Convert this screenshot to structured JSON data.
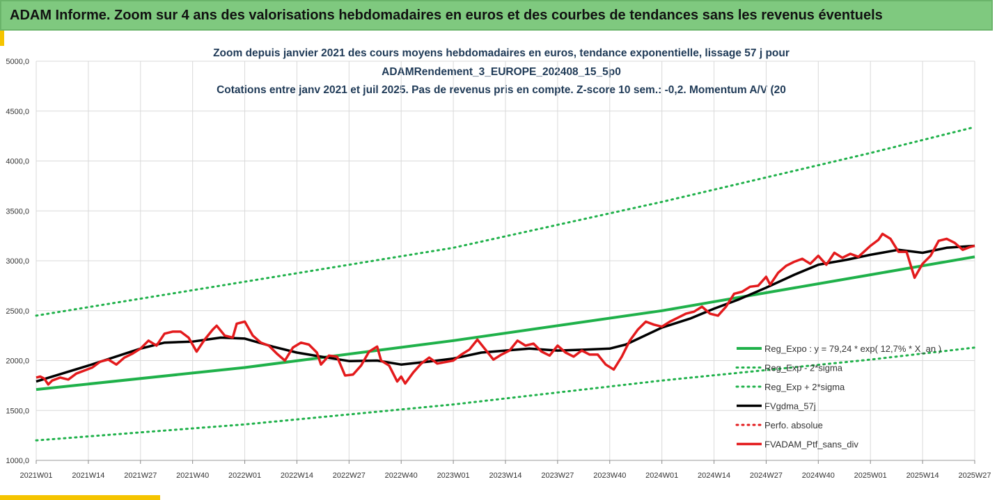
{
  "banner": {
    "title": "ADAM Informe. Zoom sur 4 ans des valorisations hebdomadaires en euros et des courbes de tendances sans les revenus éventuels"
  },
  "colors": {
    "banner_bg": "#7fc97f",
    "accent": "#f5c400",
    "trend": "#1fb14a",
    "band": "#1fb14a",
    "smoothed": "#000000",
    "perf": "#e31a1c",
    "price": "#e31a1c"
  },
  "chart_data": {
    "type": "line",
    "title_lines": [
      "Zoom depuis janvier 2021 des cours moyens hebdomadaires  en euros, tendance exponentielle, lissage 57 j pour",
      "ADAMRendement_3_EUROPE_202408_15_5p0",
      "Cotations entre janv 2021 et juil 2025. Pas de revenus pris en compte. Z-score 10 sem.: -0,2. Momentum A/V (20"
    ],
    "xlabel": "",
    "ylabel": "",
    "ylim": [
      1000,
      5000
    ],
    "yticks": [
      "1000,0",
      "1500,0",
      "2000,0",
      "2500,0",
      "3000,0",
      "3500,0",
      "4000,0",
      "4500,0",
      "5000,0"
    ],
    "ytick_values": [
      1000,
      1500,
      2000,
      2500,
      3000,
      3500,
      4000,
      4500,
      5000
    ],
    "xticks": [
      "2021W01",
      "2021W14",
      "2021W27",
      "2021W40",
      "2022W01",
      "2022W14",
      "2022W27",
      "2022W40",
      "2023W01",
      "2023W14",
      "2023W27",
      "2023W40",
      "2024W01",
      "2024W14",
      "2024W27",
      "2024W40",
      "2025W01",
      "2025W14",
      "2025W27"
    ],
    "grid": true,
    "legend_position": "bottom-right",
    "series": [
      {
        "name": "Reg_Expo : y = 79,24 * exp( 12,7% *  X_an )",
        "style": "solid",
        "points": [
          [
            "2021W01",
            1710
          ],
          [
            "2022W01",
            1930
          ],
          [
            "2023W01",
            2200
          ],
          [
            "2024W01",
            2500
          ],
          [
            "2025W01",
            2860
          ],
          [
            "2025W27",
            3040
          ]
        ]
      },
      {
        "name": "Reg_Exp - 2*sigma",
        "style": "dotted",
        "points": [
          [
            "2021W01",
            1200
          ],
          [
            "2022W01",
            1360
          ],
          [
            "2023W01",
            1560
          ],
          [
            "2024W01",
            1800
          ],
          [
            "2025W01",
            2010
          ],
          [
            "2025W27",
            2130
          ]
        ]
      },
      {
        "name": "Reg_Exp + 2*sigma",
        "style": "dotted",
        "points": [
          [
            "2021W01",
            2450
          ],
          [
            "2022W01",
            2790
          ],
          [
            "2023W01",
            3130
          ],
          [
            "2024W01",
            3590
          ],
          [
            "2025W01",
            4080
          ],
          [
            "2025W27",
            4340
          ]
        ]
      },
      {
        "name": "FVgdma_57j",
        "style": "solid",
        "points": [
          [
            "2021W01",
            1790
          ],
          [
            "2021W14",
            1950
          ],
          [
            "2021W27",
            2120
          ],
          [
            "2021W33",
            2180
          ],
          [
            "2021W40",
            2190
          ],
          [
            "2021W47",
            2230
          ],
          [
            "2022W01",
            2220
          ],
          [
            "2022W08",
            2140
          ],
          [
            "2022W14",
            2080
          ],
          [
            "2022W20",
            2040
          ],
          [
            "2022W27",
            1995
          ],
          [
            "2022W34",
            2000
          ],
          [
            "2022W40",
            1960
          ],
          [
            "2022W47",
            1990
          ],
          [
            "2023W01",
            2020
          ],
          [
            "2023W08",
            2080
          ],
          [
            "2023W14",
            2100
          ],
          [
            "2023W20",
            2120
          ],
          [
            "2023W27",
            2100
          ],
          [
            "2023W34",
            2110
          ],
          [
            "2023W40",
            2120
          ],
          [
            "2023W44",
            2160
          ],
          [
            "2024W01",
            2330
          ],
          [
            "2024W08",
            2420
          ],
          [
            "2024W14",
            2520
          ],
          [
            "2024W20",
            2610
          ],
          [
            "2024W27",
            2730
          ],
          [
            "2024W34",
            2860
          ],
          [
            "2024W40",
            2960
          ],
          [
            "2024W47",
            3010
          ],
          [
            "2025W01",
            3060
          ],
          [
            "2025W08",
            3110
          ],
          [
            "2025W14",
            3080
          ],
          [
            "2025W20",
            3130
          ],
          [
            "2025W27",
            3150
          ]
        ]
      },
      {
        "name": "Perfo. absolue",
        "style": "dotted",
        "points": []
      },
      {
        "name": "FVADAM_Ptf_sans_div",
        "style": "solid-thick",
        "points": [
          [
            "2021W01",
            1830
          ],
          [
            "2021W02",
            1840
          ],
          [
            "2021W03",
            1820
          ],
          [
            "2021W04",
            1760
          ],
          [
            "2021W05",
            1800
          ],
          [
            "2021W07",
            1830
          ],
          [
            "2021W09",
            1810
          ],
          [
            "2021W11",
            1870
          ],
          [
            "2021W13",
            1900
          ],
          [
            "2021W15",
            1930
          ],
          [
            "2021W17",
            1990
          ],
          [
            "2021W19",
            2010
          ],
          [
            "2021W21",
            1960
          ],
          [
            "2021W23",
            2030
          ],
          [
            "2021W25",
            2070
          ],
          [
            "2021W27",
            2120
          ],
          [
            "2021W29",
            2200
          ],
          [
            "2021W31",
            2150
          ],
          [
            "2021W33",
            2270
          ],
          [
            "2021W35",
            2290
          ],
          [
            "2021W37",
            2290
          ],
          [
            "2021W39",
            2230
          ],
          [
            "2021W41",
            2090
          ],
          [
            "2021W43",
            2210
          ],
          [
            "2021W45",
            2310
          ],
          [
            "2021W46",
            2350
          ],
          [
            "2021W48",
            2250
          ],
          [
            "2021W50",
            2230
          ],
          [
            "2021W51",
            2370
          ],
          [
            "2022W01",
            2390
          ],
          [
            "2022W03",
            2250
          ],
          [
            "2022W05",
            2180
          ],
          [
            "2022W07",
            2150
          ],
          [
            "2022W09",
            2070
          ],
          [
            "2022W11",
            2000
          ],
          [
            "2022W13",
            2130
          ],
          [
            "2022W15",
            2180
          ],
          [
            "2022W17",
            2160
          ],
          [
            "2022W19",
            2080
          ],
          [
            "2022W20",
            1960
          ],
          [
            "2022W22",
            2050
          ],
          [
            "2022W24",
            2040
          ],
          [
            "2022W26",
            1850
          ],
          [
            "2022W28",
            1860
          ],
          [
            "2022W30",
            1950
          ],
          [
            "2022W32",
            2090
          ],
          [
            "2022W34",
            2140
          ],
          [
            "2022W35",
            2000
          ],
          [
            "2022W37",
            1950
          ],
          [
            "2022W39",
            1790
          ],
          [
            "2022W40",
            1840
          ],
          [
            "2022W41",
            1770
          ],
          [
            "2022W43",
            1880
          ],
          [
            "2022W45",
            1970
          ],
          [
            "2022W47",
            2030
          ],
          [
            "2022W49",
            1970
          ],
          [
            "2023W01",
            2000
          ],
          [
            "2023W03",
            2060
          ],
          [
            "2023W05",
            2110
          ],
          [
            "2023W07",
            2210
          ],
          [
            "2023W09",
            2110
          ],
          [
            "2023W11",
            2010
          ],
          [
            "2023W13",
            2060
          ],
          [
            "2023W15",
            2100
          ],
          [
            "2023W17",
            2200
          ],
          [
            "2023W19",
            2150
          ],
          [
            "2023W21",
            2170
          ],
          [
            "2023W23",
            2090
          ],
          [
            "2023W25",
            2050
          ],
          [
            "2023W27",
            2150
          ],
          [
            "2023W29",
            2080
          ],
          [
            "2023W31",
            2040
          ],
          [
            "2023W33",
            2100
          ],
          [
            "2023W35",
            2060
          ],
          [
            "2023W37",
            2060
          ],
          [
            "2023W39",
            1960
          ],
          [
            "2023W41",
            1910
          ],
          [
            "2023W43",
            2040
          ],
          [
            "2023W45",
            2200
          ],
          [
            "2023W47",
            2310
          ],
          [
            "2023W49",
            2390
          ],
          [
            "2023W51",
            2360
          ],
          [
            "2024W01",
            2340
          ],
          [
            "2024W03",
            2390
          ],
          [
            "2024W05",
            2430
          ],
          [
            "2024W07",
            2470
          ],
          [
            "2024W09",
            2490
          ],
          [
            "2024W11",
            2540
          ],
          [
            "2024W13",
            2470
          ],
          [
            "2024W15",
            2450
          ],
          [
            "2024W17",
            2540
          ],
          [
            "2024W19",
            2670
          ],
          [
            "2024W21",
            2690
          ],
          [
            "2024W23",
            2740
          ],
          [
            "2024W25",
            2750
          ],
          [
            "2024W27",
            2840
          ],
          [
            "2024W28",
            2760
          ],
          [
            "2024W30",
            2880
          ],
          [
            "2024W32",
            2950
          ],
          [
            "2024W34",
            2990
          ],
          [
            "2024W36",
            3020
          ],
          [
            "2024W38",
            2970
          ],
          [
            "2024W40",
            3050
          ],
          [
            "2024W42",
            2960
          ],
          [
            "2024W44",
            3080
          ],
          [
            "2024W46",
            3030
          ],
          [
            "2024W48",
            3070
          ],
          [
            "2024W50",
            3040
          ],
          [
            "2025W01",
            3150
          ],
          [
            "2025W03",
            3210
          ],
          [
            "2025W04",
            3270
          ],
          [
            "2025W06",
            3220
          ],
          [
            "2025W08",
            3090
          ],
          [
            "2025W10",
            3090
          ],
          [
            "2025W12",
            2830
          ],
          [
            "2025W14",
            2970
          ],
          [
            "2025W16",
            3050
          ],
          [
            "2025W18",
            3200
          ],
          [
            "2025W20",
            3220
          ],
          [
            "2025W22",
            3180
          ],
          [
            "2025W24",
            3110
          ],
          [
            "2025W26",
            3140
          ],
          [
            "2025W27",
            3150
          ]
        ]
      }
    ]
  }
}
